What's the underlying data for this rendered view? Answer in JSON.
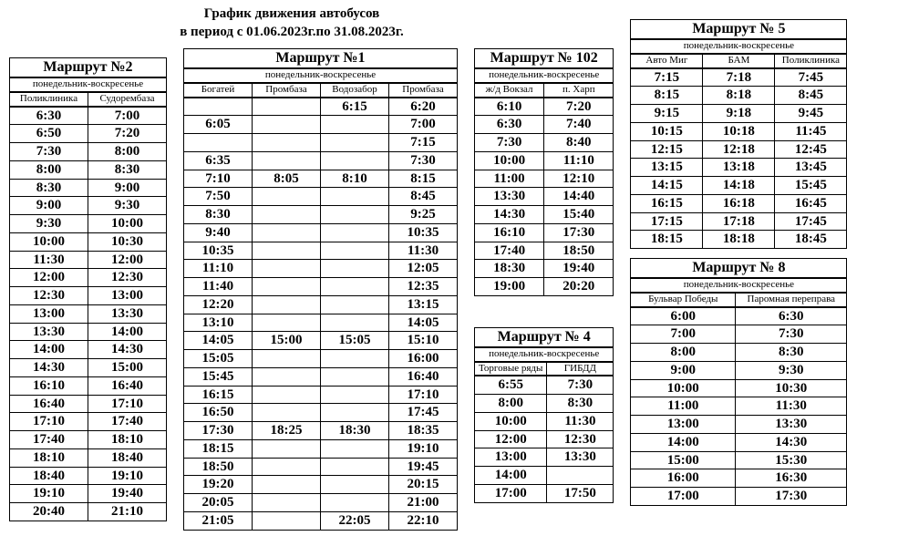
{
  "header": {
    "line1": "График движения автобусов",
    "line2": "в период с 01.06.2023г.по 31.08.2023г."
  },
  "routes": {
    "r2": {
      "title": "Маршрут №2",
      "days": "понедельник-воскресенье",
      "cols": [
        "Поликлиника",
        "Судорембаза"
      ],
      "rows": [
        [
          "6:30",
          "7:00"
        ],
        [
          "6:50",
          "7:20"
        ],
        [
          "7:30",
          "8:00"
        ],
        [
          "8:00",
          "8:30"
        ],
        [
          "8:30",
          "9:00"
        ],
        [
          "9:00",
          "9:30"
        ],
        [
          "9:30",
          "10:00"
        ],
        [
          "10:00",
          "10:30"
        ],
        [
          "11:30",
          "12:00"
        ],
        [
          "12:00",
          "12:30"
        ],
        [
          "12:30",
          "13:00"
        ],
        [
          "13:00",
          "13:30"
        ],
        [
          "13:30",
          "14:00"
        ],
        [
          "14:00",
          "14:30"
        ],
        [
          "14:30",
          "15:00"
        ],
        [
          "16:10",
          "16:40"
        ],
        [
          "16:40",
          "17:10"
        ],
        [
          "17:10",
          "17:40"
        ],
        [
          "17:40",
          "18:10"
        ],
        [
          "18:10",
          "18:40"
        ],
        [
          "18:40",
          "19:10"
        ],
        [
          "19:10",
          "19:40"
        ],
        [
          "20:40",
          "21:10"
        ]
      ]
    },
    "r1": {
      "title": "Маршрут №1",
      "days": "понедельник-воскресенье",
      "cols": [
        "Богатей",
        "Промбаза",
        "Водозабор",
        "Промбаза"
      ],
      "rows": [
        [
          "",
          "",
          "6:15",
          "6:20"
        ],
        [
          "6:05",
          "",
          "",
          "7:00"
        ],
        [
          "",
          "",
          "",
          "7:15"
        ],
        [
          "6:35",
          "",
          "",
          "7:30"
        ],
        [
          "7:10",
          "8:05",
          "8:10",
          "8:15"
        ],
        [
          "7:50",
          "",
          "",
          "8:45"
        ],
        [
          "8:30",
          "",
          "",
          "9:25"
        ],
        [
          "9:40",
          "",
          "",
          "10:35"
        ],
        [
          "10:35",
          "",
          "",
          "11:30"
        ],
        [
          "11:10",
          "",
          "",
          "12:05"
        ],
        [
          "11:40",
          "",
          "",
          "12:35"
        ],
        [
          "12:20",
          "",
          "",
          "13:15"
        ],
        [
          "13:10",
          "",
          "",
          "14:05"
        ],
        [
          "14:05",
          "15:00",
          "15:05",
          "15:10"
        ],
        [
          "15:05",
          "",
          "",
          "16:00"
        ],
        [
          "15:45",
          "",
          "",
          "16:40"
        ],
        [
          "16:15",
          "",
          "",
          "17:10"
        ],
        [
          "16:50",
          "",
          "",
          "17:45"
        ],
        [
          "17:30",
          "18:25",
          "18:30",
          "18:35"
        ],
        [
          "18:15",
          "",
          "",
          "19:10"
        ],
        [
          "18:50",
          "",
          "",
          "19:45"
        ],
        [
          "19:20",
          "",
          "",
          "20:15"
        ],
        [
          "20:05",
          "",
          "",
          "21:00"
        ],
        [
          "21:05",
          "",
          "22:05",
          "22:10"
        ]
      ]
    },
    "r102": {
      "title": "Маршрут № 102",
      "days": "понедельник-воскресенье",
      "cols": [
        "ж/д Вокзал",
        "п. Харп"
      ],
      "rows": [
        [
          "6:10",
          "7:20"
        ],
        [
          "6:30",
          "7:40"
        ],
        [
          "7:30",
          "8:40"
        ],
        [
          "10:00",
          "11:10"
        ],
        [
          "11:00",
          "12:10"
        ],
        [
          "13:30",
          "14:40"
        ],
        [
          "14:30",
          "15:40"
        ],
        [
          "16:10",
          "17:30"
        ],
        [
          "17:40",
          "18:50"
        ],
        [
          "18:30",
          "19:40"
        ],
        [
          "19:00",
          "20:20"
        ]
      ]
    },
    "r4": {
      "title": "Маршрут № 4",
      "days": "понедельник-воскресенье",
      "cols": [
        "Торговые ряды",
        "ГИБДД"
      ],
      "rows": [
        [
          "6:55",
          "7:30"
        ],
        [
          "8:00",
          "8:30"
        ],
        [
          "10:00",
          "11:30"
        ],
        [
          "12:00",
          "12:30"
        ],
        [
          "13:00",
          "13:30"
        ],
        [
          "14:00",
          ""
        ],
        [
          "17:00",
          "17:50"
        ]
      ]
    },
    "r5": {
      "title": "Маршрут № 5",
      "days": "понедельник-воскресенье",
      "cols": [
        "Авто Миг",
        "БАМ",
        "Поликлиника"
      ],
      "rows": [
        [
          "7:15",
          "7:18",
          "7:45"
        ],
        [
          "8:15",
          "8:18",
          "8:45"
        ],
        [
          "9:15",
          "9:18",
          "9:45"
        ],
        [
          "10:15",
          "10:18",
          "11:45"
        ],
        [
          "12:15",
          "12:18",
          "12:45"
        ],
        [
          "13:15",
          "13:18",
          "13:45"
        ],
        [
          "14:15",
          "14:18",
          "15:45"
        ],
        [
          "16:15",
          "16:18",
          "16:45"
        ],
        [
          "17:15",
          "17:18",
          "17:45"
        ],
        [
          "18:15",
          "18:18",
          "18:45"
        ]
      ]
    },
    "r8": {
      "title": "Маршрут № 8",
      "days": "понедельник-воскресенье",
      "cols": [
        "Бульвар Победы",
        "Паромная переправа"
      ],
      "rows": [
        [
          "6:00",
          "6:30"
        ],
        [
          "7:00",
          "7:30"
        ],
        [
          "8:00",
          "8:30"
        ],
        [
          "9:00",
          "9:30"
        ],
        [
          "10:00",
          "10:30"
        ],
        [
          "11:00",
          "11:30"
        ],
        [
          "13:00",
          "13:30"
        ],
        [
          "14:00",
          "14:30"
        ],
        [
          "15:00",
          "15:30"
        ],
        [
          "16:00",
          "16:30"
        ],
        [
          "17:00",
          "17:30"
        ]
      ]
    }
  }
}
